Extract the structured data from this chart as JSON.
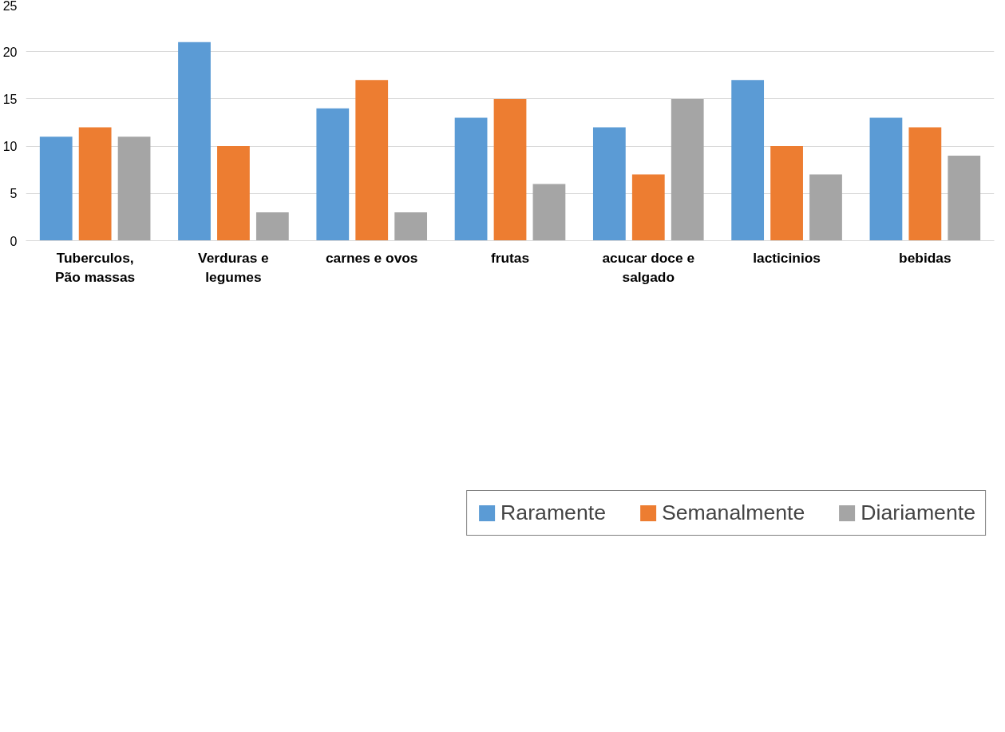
{
  "chart_data": {
    "type": "bar",
    "categories": [
      "Tuberculos, Pão massas",
      "Verduras e legumes",
      "carnes e ovos",
      "frutas",
      "acucar doce e salgado",
      "lacticinios",
      "bebidas"
    ],
    "series": [
      {
        "name": "Raramente",
        "color": "#5b9bd5",
        "values": [
          11,
          21,
          14,
          13,
          12,
          17,
          13
        ]
      },
      {
        "name": "Semanalmente",
        "color": "#ed7d31",
        "values": [
          12,
          10,
          17,
          15,
          7,
          10,
          12
        ]
      },
      {
        "name": "Diariamente",
        "color": "#a5a5a5",
        "values": [
          11,
          3,
          3,
          6,
          15,
          7,
          9
        ]
      }
    ],
    "ylim": [
      0,
      25
    ],
    "yticks": [
      0,
      5,
      10,
      15,
      20,
      25
    ],
    "grid": "y",
    "legend": "bottom"
  }
}
